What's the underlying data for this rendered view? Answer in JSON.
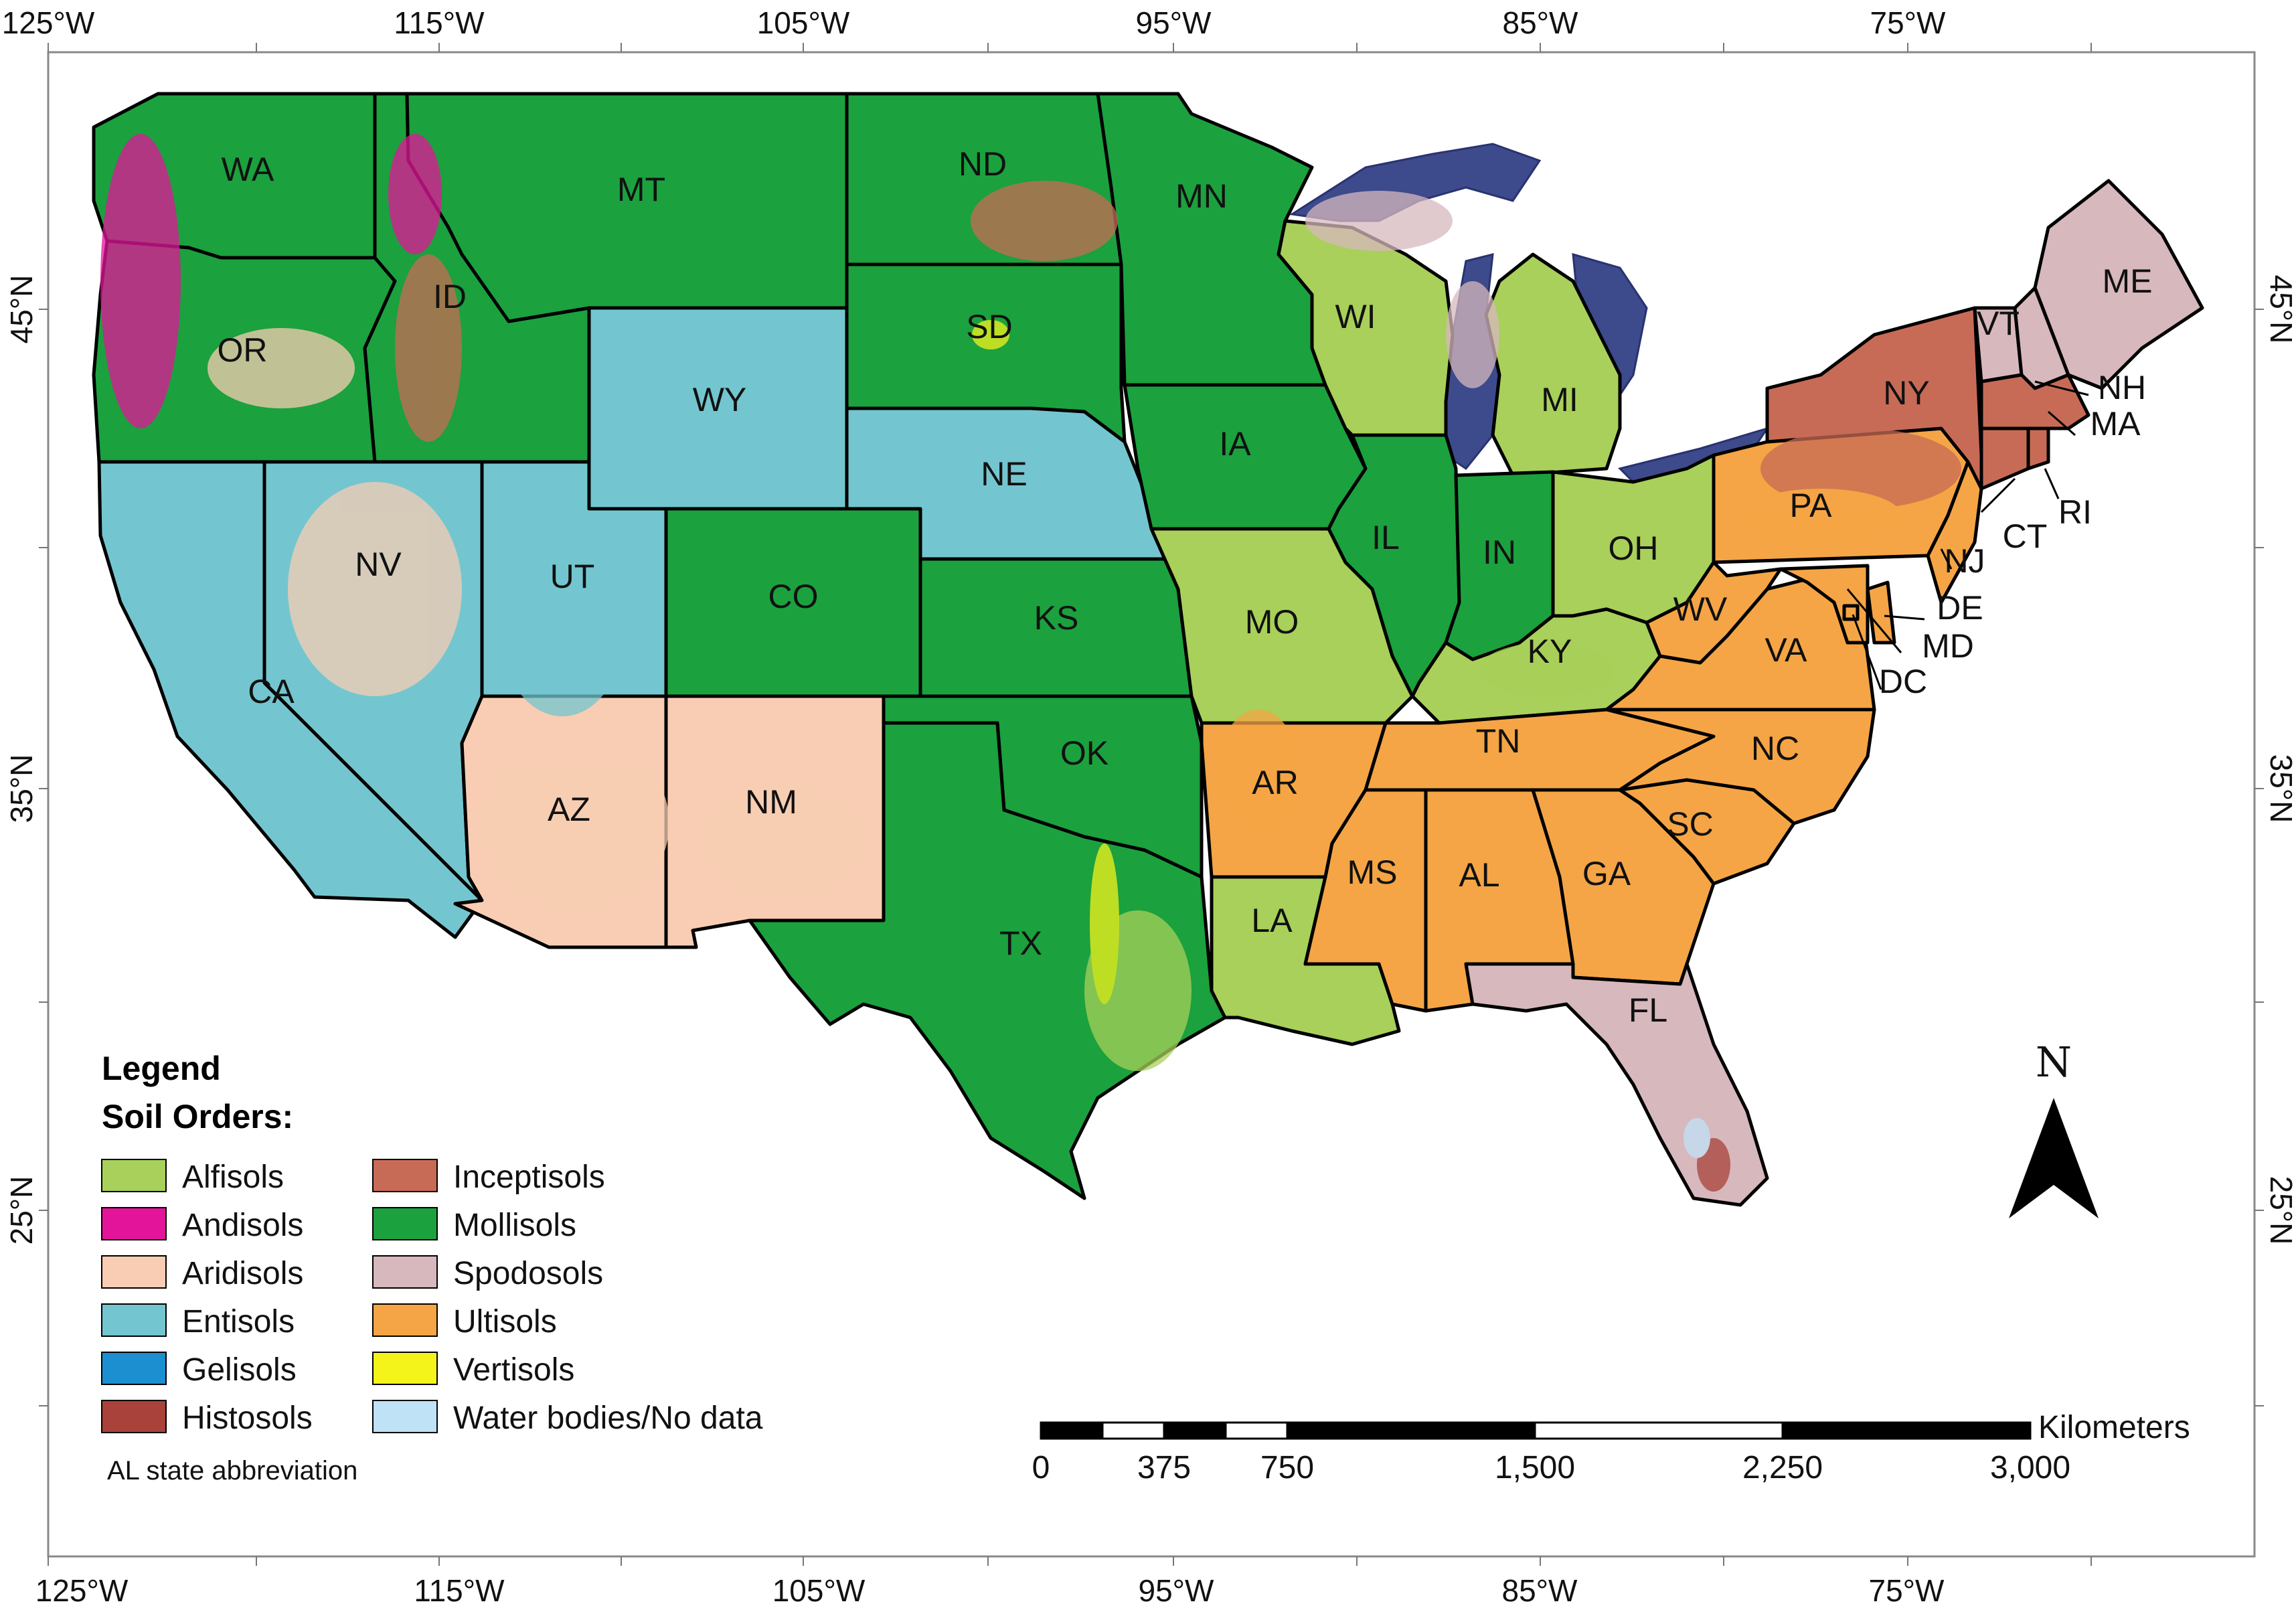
{
  "longitude_ticks": [
    "125°W",
    "115°W",
    "105°W",
    "95°W",
    "85°W",
    "75°W"
  ],
  "latitude_ticks": [
    "45°N",
    "35°N",
    "25°N"
  ],
  "legend": {
    "title": "Legend",
    "subtitle": "Soil Orders:",
    "items": [
      {
        "label": "Alfisols",
        "color": "#a8d05a"
      },
      {
        "label": "Andisols",
        "color": "#e4149a"
      },
      {
        "label": "Aridisols",
        "color": "#f8cdb3"
      },
      {
        "label": "Entisols",
        "color": "#73c6d0"
      },
      {
        "label": "Gelisols",
        "color": "#1b8fcf"
      },
      {
        "label": "Histosols",
        "color": "#a9423a"
      },
      {
        "label": "Inceptisols",
        "color": "#c86b56"
      },
      {
        "label": "Mollisols",
        "color": "#1ba13e"
      },
      {
        "label": "Spodosols",
        "color": "#d7b8bd"
      },
      {
        "label": "Ultisols",
        "color": "#f5a545"
      },
      {
        "label": "Vertisols",
        "color": "#f4f31a"
      },
      {
        "label": "Water bodies/No data",
        "color": "#bfe2f7"
      }
    ],
    "note": "AL state abbreviation"
  },
  "scale_bar": {
    "unit": "Kilometers",
    "ticks": [
      "0",
      "375",
      "750",
      "1,500",
      "2,250",
      "3,000"
    ]
  },
  "north_arrow": "N",
  "states": [
    {
      "abbr": "WA",
      "fill": "#1ba13e"
    },
    {
      "abbr": "OR",
      "fill": "#1ba13e"
    },
    {
      "abbr": "CA",
      "fill": "#73c6d0"
    },
    {
      "abbr": "ID",
      "fill": "#1ba13e"
    },
    {
      "abbr": "NV",
      "fill": "#73c6d0"
    },
    {
      "abbr": "UT",
      "fill": "#73c6d0"
    },
    {
      "abbr": "AZ",
      "fill": "#f8cdb3"
    },
    {
      "abbr": "MT",
      "fill": "#1ba13e"
    },
    {
      "abbr": "WY",
      "fill": "#73c6d0"
    },
    {
      "abbr": "CO",
      "fill": "#1ba13e"
    },
    {
      "abbr": "NM",
      "fill": "#f8cdb3"
    },
    {
      "abbr": "ND",
      "fill": "#1ba13e"
    },
    {
      "abbr": "SD",
      "fill": "#1ba13e"
    },
    {
      "abbr": "NE",
      "fill": "#73c6d0"
    },
    {
      "abbr": "KS",
      "fill": "#1ba13e"
    },
    {
      "abbr": "OK",
      "fill": "#1ba13e"
    },
    {
      "abbr": "TX",
      "fill": "#1ba13e"
    },
    {
      "abbr": "MN",
      "fill": "#1ba13e"
    },
    {
      "abbr": "IA",
      "fill": "#1ba13e"
    },
    {
      "abbr": "MO",
      "fill": "#a8d05a"
    },
    {
      "abbr": "AR",
      "fill": "#f5a545"
    },
    {
      "abbr": "LA",
      "fill": "#a8d05a"
    },
    {
      "abbr": "WI",
      "fill": "#a8d05a"
    },
    {
      "abbr": "IL",
      "fill": "#1ba13e"
    },
    {
      "abbr": "MI",
      "fill": "#a8d05a"
    },
    {
      "abbr": "IN",
      "fill": "#1ba13e"
    },
    {
      "abbr": "OH",
      "fill": "#a8d05a"
    },
    {
      "abbr": "KY",
      "fill": "#a8d05a"
    },
    {
      "abbr": "TN",
      "fill": "#f5a545"
    },
    {
      "abbr": "MS",
      "fill": "#f5a545"
    },
    {
      "abbr": "AL",
      "fill": "#f5a545"
    },
    {
      "abbr": "GA",
      "fill": "#f5a545"
    },
    {
      "abbr": "FL",
      "fill": "#d7b8bd"
    },
    {
      "abbr": "SC",
      "fill": "#f5a545"
    },
    {
      "abbr": "NC",
      "fill": "#f5a545"
    },
    {
      "abbr": "VA",
      "fill": "#f5a545"
    },
    {
      "abbr": "WV",
      "fill": "#f5a545"
    },
    {
      "abbr": "PA",
      "fill": "#f5a545"
    },
    {
      "abbr": "NY",
      "fill": "#c86b56"
    },
    {
      "abbr": "VT",
      "fill": "#d7b8bd"
    },
    {
      "abbr": "NH",
      "fill": "#d7b8bd"
    },
    {
      "abbr": "ME",
      "fill": "#d7b8bd"
    },
    {
      "abbr": "MA",
      "fill": "#c86b56"
    },
    {
      "abbr": "CT",
      "fill": "#c86b56"
    },
    {
      "abbr": "RI",
      "fill": "#c86b56"
    },
    {
      "abbr": "NJ",
      "fill": "#f5a545"
    },
    {
      "abbr": "DE",
      "fill": "#f5a545"
    },
    {
      "abbr": "MD",
      "fill": "#f5a545"
    },
    {
      "abbr": "DC",
      "fill": "#f5a545"
    }
  ]
}
